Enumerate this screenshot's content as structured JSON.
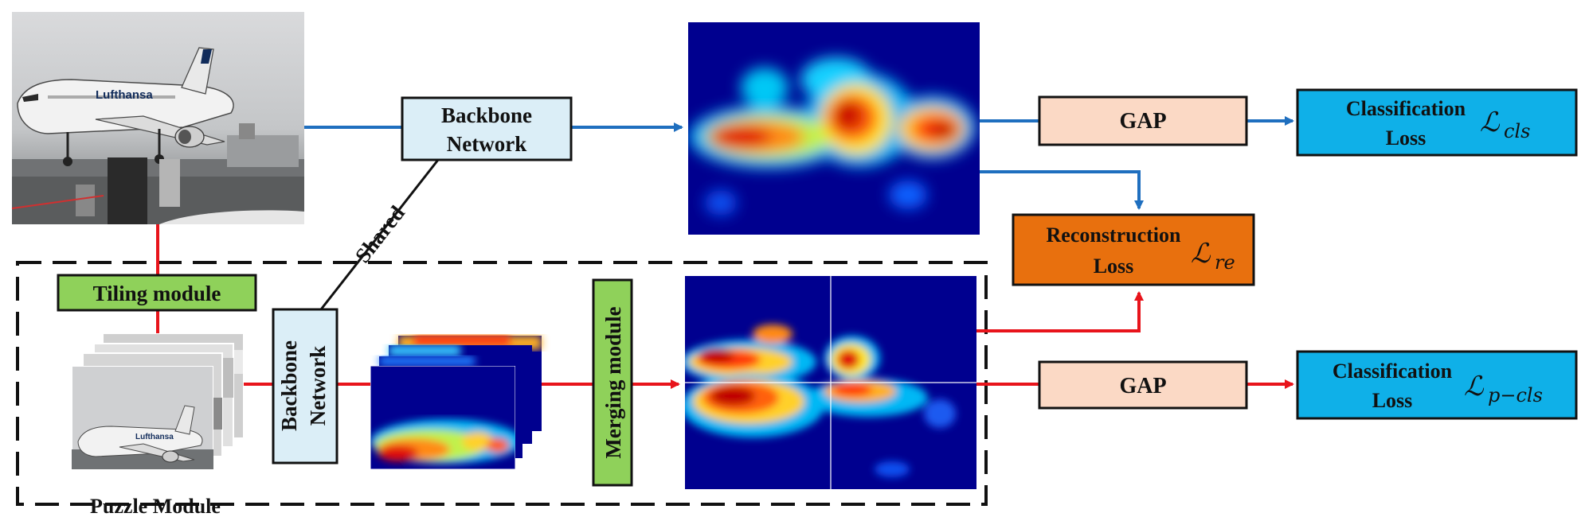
{
  "diagram": {
    "backbone_top": [
      "Backbone",
      "Network"
    ],
    "backbone_bottom": [
      "Backbone",
      "Network"
    ],
    "shared_label": "Shared",
    "tiling_module": "Tiling module",
    "merging_module": "Merging module",
    "puzzle_module": "Puzzle Module",
    "gap_top": "GAP",
    "gap_bottom": "GAP",
    "cls_loss_top": [
      "Classification",
      "Loss"
    ],
    "cls_loss_top_symbol": "ℒ",
    "cls_loss_top_sub": "cls",
    "reconstruction_loss": [
      "Reconstruction",
      "Loss"
    ],
    "reconstruction_symbol": "ℒ",
    "reconstruction_sub": "re",
    "cls_loss_bottom": [
      "Classification",
      "Loss"
    ],
    "cls_loss_bottom_symbol": "ℒ",
    "cls_loss_bottom_sub": "p−cls",
    "image_logo_text": "Lufthansa"
  },
  "colors": {
    "blue_arrow": "#1f6fbf",
    "red_arrow": "#e8141b",
    "backbone_fill": "#dbeef7",
    "module_fill": "#8fd15a",
    "gap_fill": "#fbd9c5",
    "cls_fill": "#0fb0e8",
    "recon_fill": "#e8700e",
    "heatmap_bg": "#00008f"
  }
}
